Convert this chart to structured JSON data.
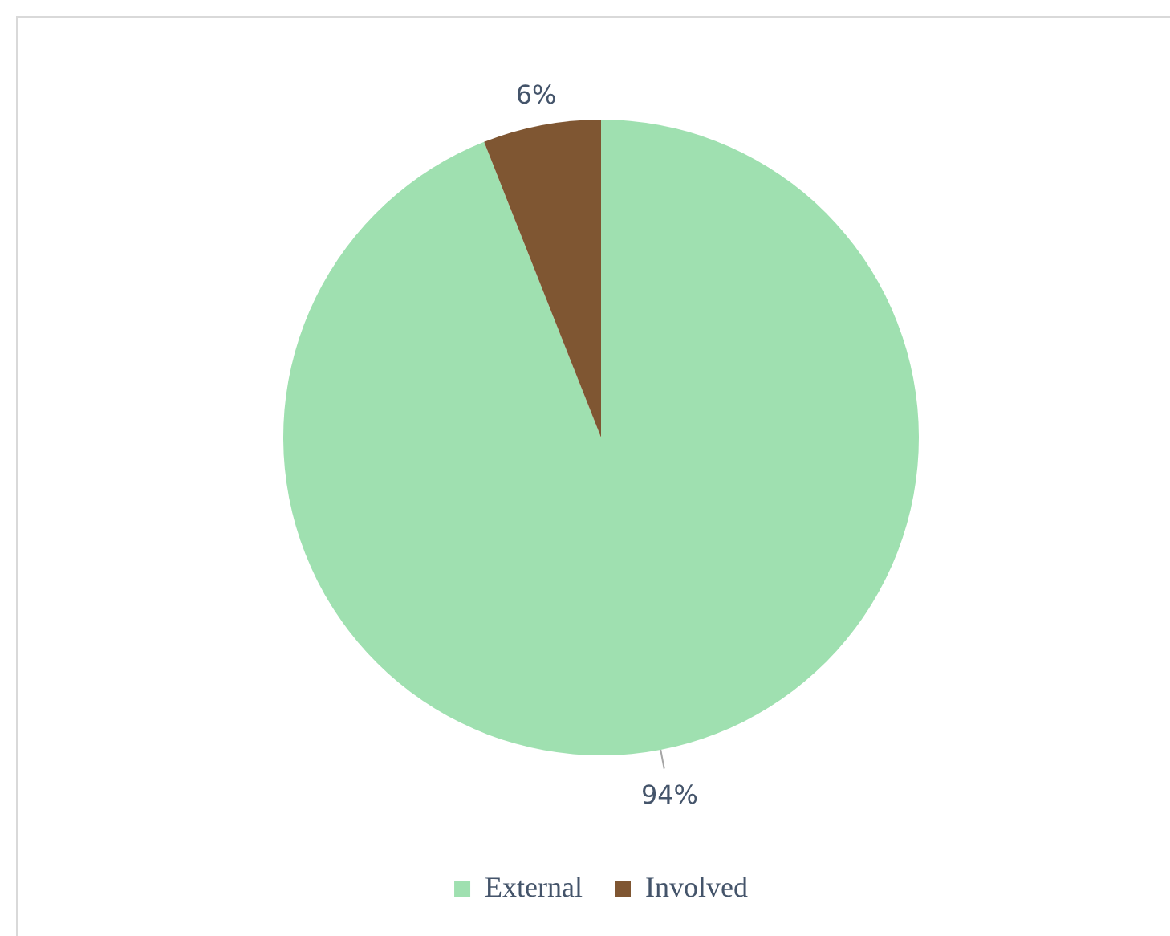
{
  "chart_data": {
    "type": "pie",
    "categories": [
      "External",
      "Involved"
    ],
    "values": [
      94,
      6
    ],
    "colors": [
      "#9fe0b0",
      "#7f5632"
    ],
    "value_labels": [
      "94%",
      "6%"
    ],
    "legend": "bottom"
  }
}
